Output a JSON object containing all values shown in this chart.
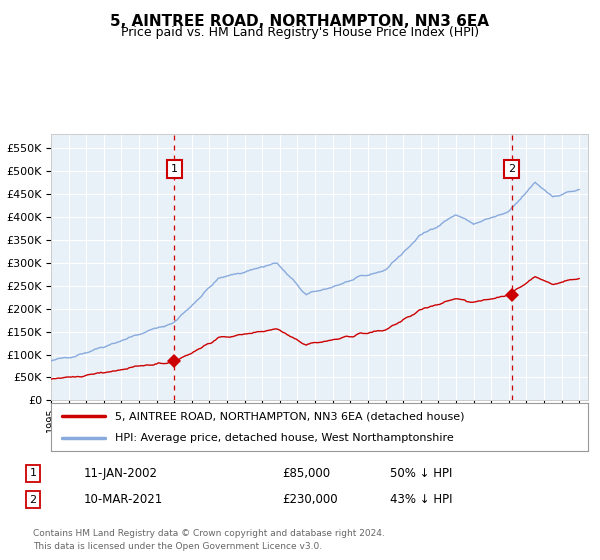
{
  "title": "5, AINTREE ROAD, NORTHAMPTON, NN3 6EA",
  "subtitle": "Price paid vs. HM Land Registry's House Price Index (HPI)",
  "legend_line1": "5, AINTREE ROAD, NORTHAMPTON, NN3 6EA (detached house)",
  "legend_line2": "HPI: Average price, detached house, West Northamptonshire",
  "annotation1_date": "11-JAN-2002",
  "annotation1_price": "£85,000",
  "annotation1_hpi": "50% ↓ HPI",
  "annotation2_date": "10-MAR-2021",
  "annotation2_price": "£230,000",
  "annotation2_hpi": "43% ↓ HPI",
  "footer1": "Contains HM Land Registry data © Crown copyright and database right 2024.",
  "footer2": "This data is licensed under the Open Government Licence v3.0.",
  "hpi_color": "#88aadd",
  "price_color": "#cc0000",
  "bg_color": "#ffffff",
  "plot_bg": "#e8f0f8",
  "grid_color": "#ffffff",
  "vline1_color": "#cc0000",
  "vline2_color": "#cc0000",
  "annotation_box_color": "#cc0000",
  "ylim": [
    0,
    580000
  ],
  "yticks": [
    0,
    50000,
    100000,
    150000,
    200000,
    250000,
    300000,
    350000,
    400000,
    450000,
    500000,
    550000
  ]
}
